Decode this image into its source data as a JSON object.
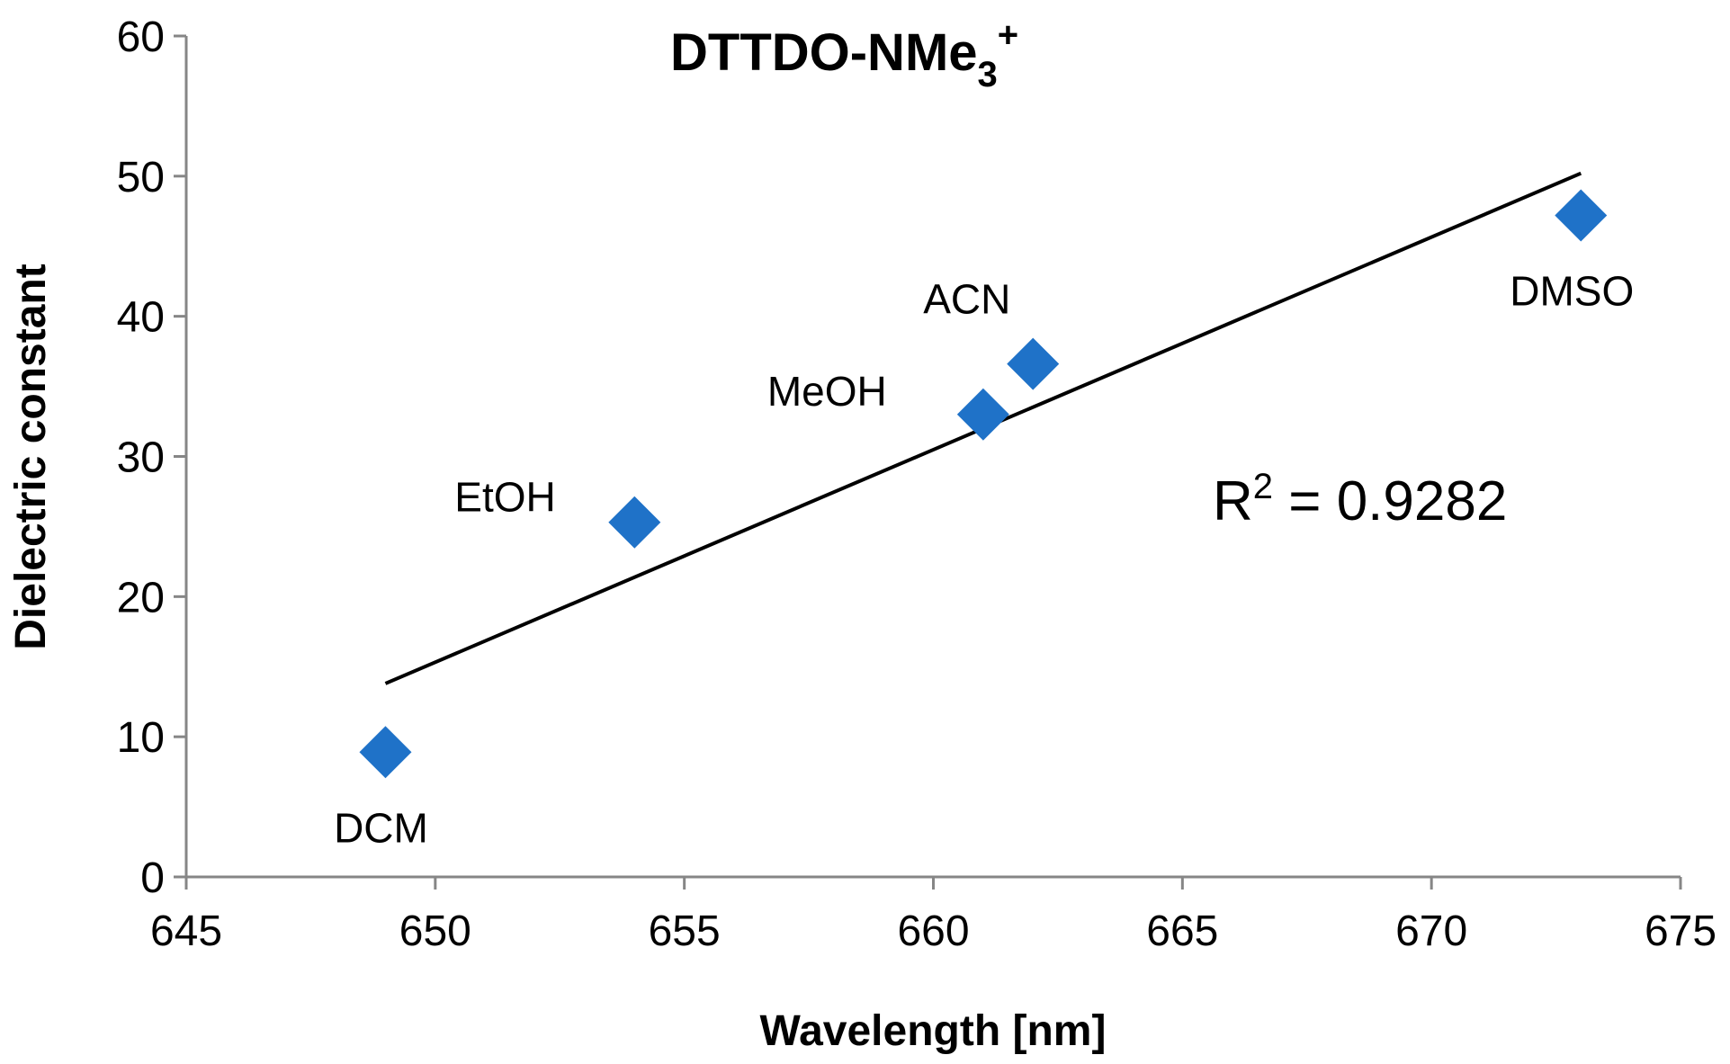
{
  "chart_data": {
    "type": "scatter",
    "title": {
      "main": "DTTDO-NMe",
      "sub": "3",
      "sup": "+"
    },
    "xlabel": "Wavelength [nm]",
    "ylabel": "Dielectric constant",
    "xlim": [
      645,
      675
    ],
    "ylim": [
      0,
      60
    ],
    "x_ticks": [
      "645",
      "650",
      "655",
      "660",
      "665",
      "670",
      "675"
    ],
    "y_ticks": [
      "0",
      "10",
      "20",
      "30",
      "40",
      "50",
      "60"
    ],
    "marker_color": "#1f72c8",
    "points": [
      {
        "label": "DCM",
        "x": 649,
        "y": 8.9
      },
      {
        "label": "EtOH",
        "x": 654,
        "y": 25.3
      },
      {
        "label": "MeOH",
        "x": 661,
        "y": 33.0
      },
      {
        "label": "ACN",
        "x": 662,
        "y": 36.6
      },
      {
        "label": "DMSO",
        "x": 673,
        "y": 47.2
      }
    ],
    "trendline": {
      "type": "linear",
      "x": [
        649,
        673
      ],
      "y": [
        13.8,
        50.2
      ],
      "color": "#000000"
    },
    "annotation": {
      "prefix": "R",
      "sup": "2",
      "text": " = 0.9282"
    }
  }
}
